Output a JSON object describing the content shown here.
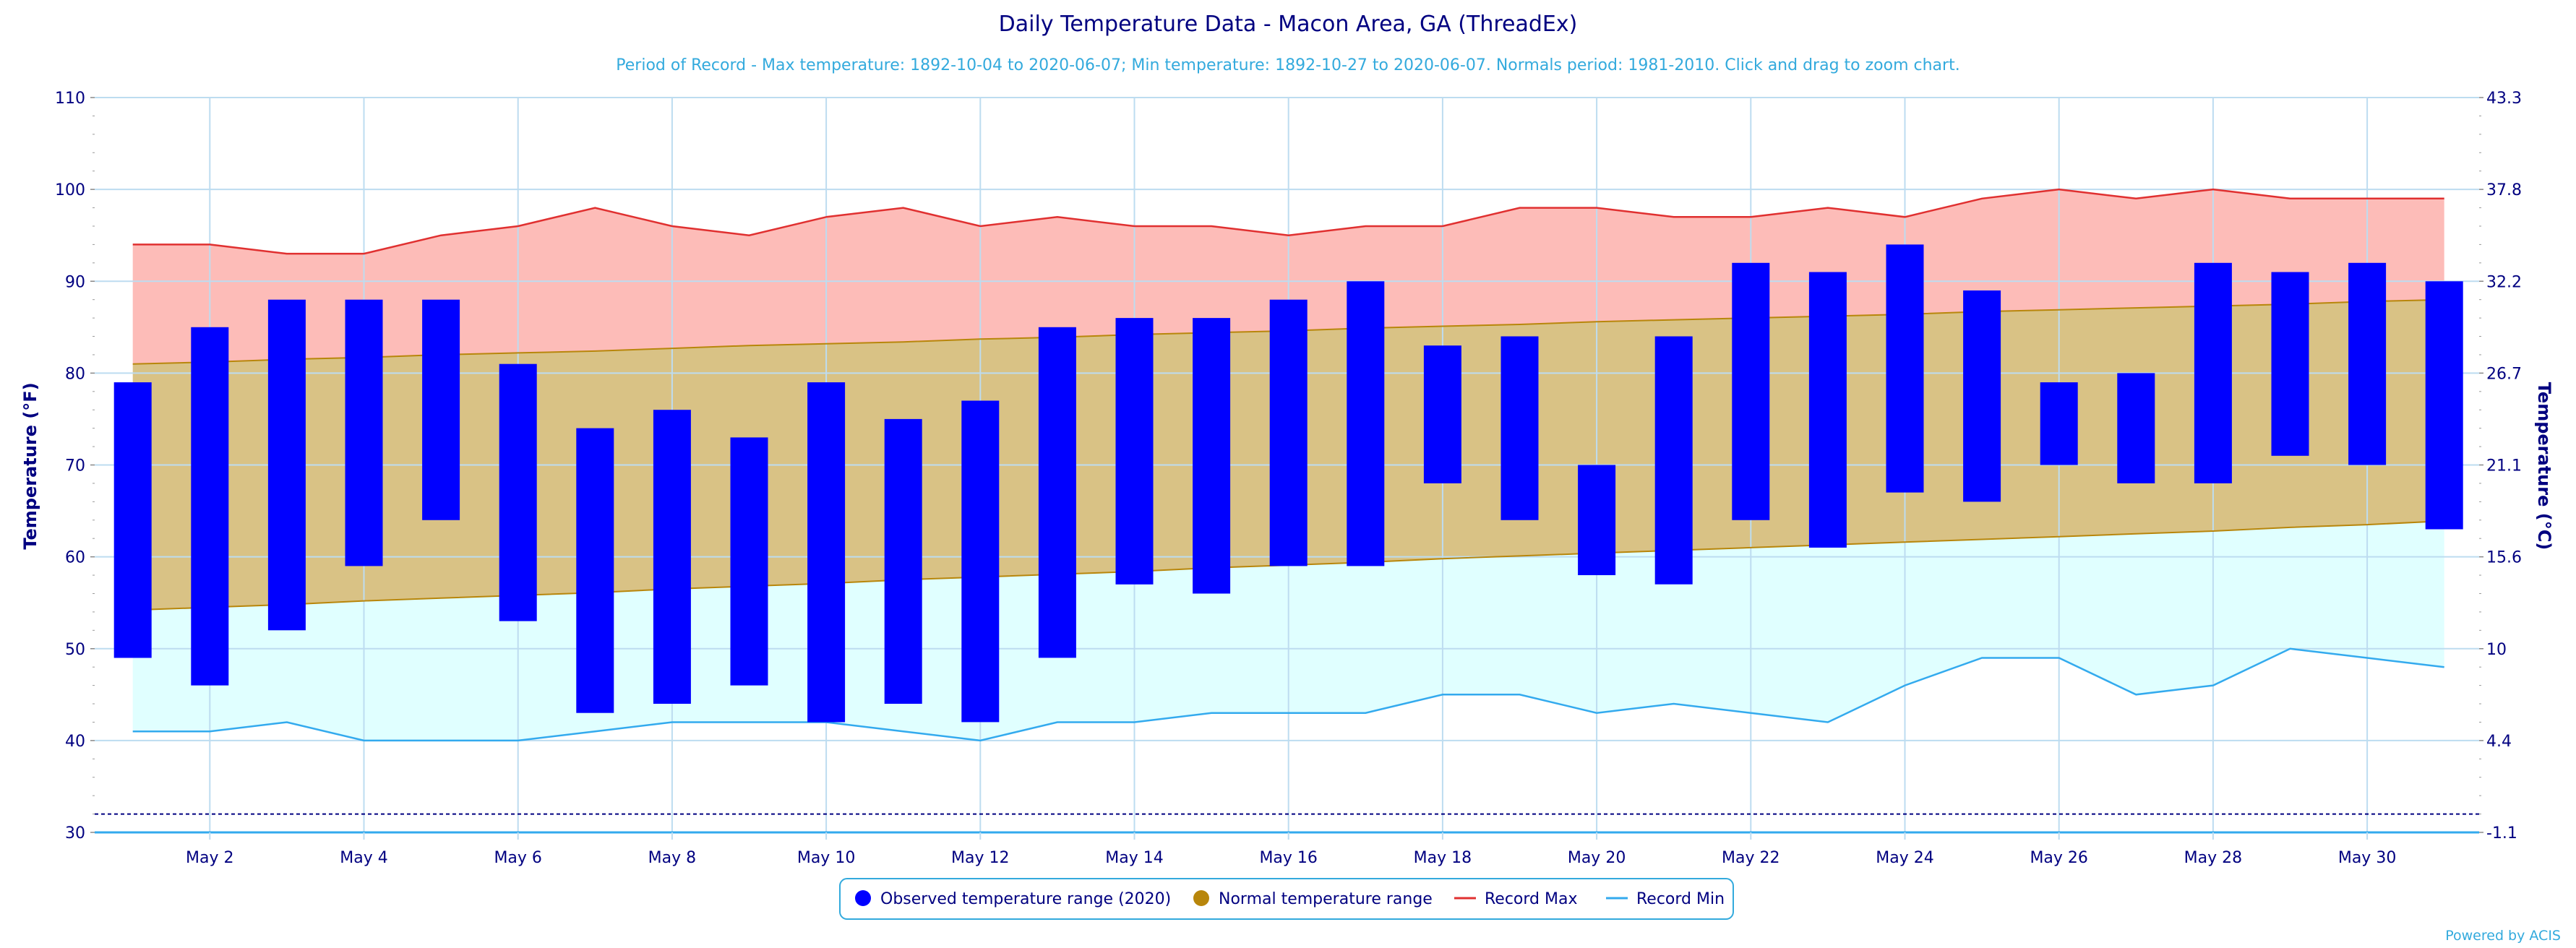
{
  "colors": {
    "title": "#000080",
    "subtitle": "#33aadd",
    "axis_text": "#000080",
    "observed": "#0000ff",
    "normal_band": "#d9c285",
    "normal_line": "#b8860b",
    "record_max_line": "#e03030",
    "record_max_fill": "#fdbcb8",
    "record_min_line": "#33aaee",
    "record_min_fill": "#e0ffff",
    "grid": "#bddcf0",
    "freeze_line": "#000080",
    "credit": "#33aadd",
    "legend_border": "#33aadd"
  },
  "credit": "Powered by ACIS",
  "chart_data": {
    "type": "bar",
    "title": "Daily Temperature Data - Macon Area, GA (ThreadEx)",
    "subtitle": "Period of Record - Max temperature: 1892-10-04 to 2020-06-07; Min temperature: 1892-10-27 to 2020-06-07. Normals period: 1981-2010. Click and drag to zoom chart.",
    "ylabel": "Temperature (°F)",
    "ylabel_right": "Temperature (°C)",
    "ylim": [
      30,
      110
    ],
    "yticks": [
      30,
      40,
      50,
      60,
      70,
      80,
      90,
      100,
      110
    ],
    "yticks_right": [
      "-1.1",
      "4.4",
      "10",
      "15.6",
      "21.1",
      "26.7",
      "32.2",
      "37.8",
      "43.3"
    ],
    "freezing_line": 32,
    "grid": true,
    "legend_position": "bottom-center",
    "days": [
      1,
      2,
      3,
      4,
      5,
      6,
      7,
      8,
      9,
      10,
      11,
      12,
      13,
      14,
      15,
      16,
      17,
      18,
      19,
      20,
      21,
      22,
      23,
      24,
      25,
      26,
      27,
      28,
      29,
      30,
      31
    ],
    "x_tick_days": [
      2,
      4,
      6,
      8,
      10,
      12,
      14,
      16,
      18,
      20,
      22,
      24,
      26,
      28,
      30
    ],
    "x_tick_labels": [
      "May 2",
      "May 4",
      "May 6",
      "May 8",
      "May 10",
      "May 12",
      "May 14",
      "May 16",
      "May 18",
      "May 20",
      "May 22",
      "May 24",
      "May 26",
      "May 28",
      "May 30"
    ],
    "legend": [
      "Observed temperature range (2020)",
      "Normal temperature range",
      "Record Max",
      "Record Min"
    ],
    "observed_high": [
      79,
      85,
      88,
      88,
      88,
      81,
      74,
      76,
      73,
      79,
      75,
      77,
      85,
      86,
      86,
      88,
      90,
      83,
      84,
      70,
      84,
      92,
      91,
      94,
      89,
      79,
      80,
      92,
      91,
      92,
      90
    ],
    "observed_low": [
      49,
      46,
      52,
      59,
      64,
      53,
      43,
      44,
      46,
      42,
      44,
      42,
      49,
      57,
      56,
      59,
      59,
      68,
      64,
      58,
      57,
      64,
      61,
      67,
      66,
      70,
      68,
      68,
      71,
      70,
      63
    ],
    "normal_high": [
      81,
      81.2,
      81.5,
      81.7,
      82,
      82.2,
      82.4,
      82.7,
      83,
      83.2,
      83.4,
      83.7,
      83.9,
      84.2,
      84.4,
      84.6,
      84.9,
      85.1,
      85.3,
      85.6,
      85.8,
      86,
      86.2,
      86.4,
      86.7,
      86.9,
      87.1,
      87.3,
      87.5,
      87.8,
      88
    ],
    "normal_low": [
      54.2,
      54.5,
      54.8,
      55.2,
      55.5,
      55.8,
      56.1,
      56.5,
      56.8,
      57.1,
      57.5,
      57.8,
      58.1,
      58.4,
      58.8,
      59.1,
      59.4,
      59.8,
      60.1,
      60.4,
      60.7,
      61,
      61.3,
      61.6,
      61.9,
      62.2,
      62.5,
      62.8,
      63.2,
      63.5,
      63.9
    ],
    "record_max": [
      94,
      94,
      93,
      93,
      95,
      96,
      98,
      96,
      95,
      97,
      98,
      96,
      97,
      96,
      96,
      95,
      96,
      96,
      98,
      98,
      97,
      97,
      98,
      97,
      99,
      100,
      99,
      100,
      99,
      99,
      99
    ],
    "record_min": [
      41,
      41,
      42,
      40,
      40,
      40,
      41,
      42,
      42,
      42,
      41,
      40,
      42,
      42,
      43,
      43,
      43,
      45,
      45,
      43,
      44,
      43,
      42,
      46,
      49,
      49,
      45,
      46,
      50,
      49,
      48
    ]
  }
}
